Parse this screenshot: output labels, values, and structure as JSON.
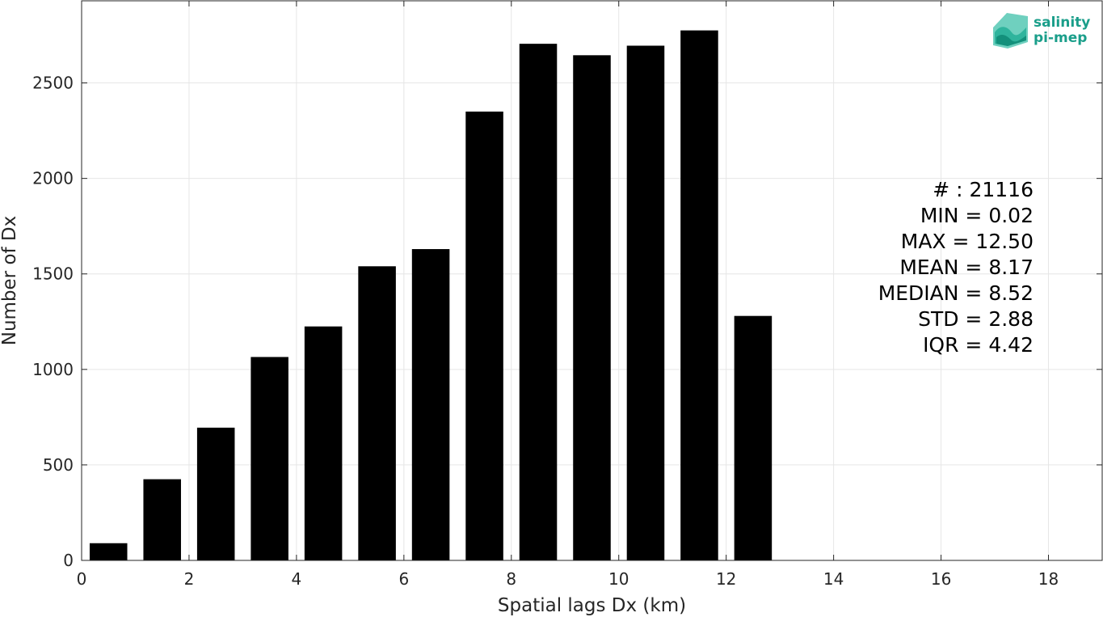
{
  "chart_data": {
    "type": "bar",
    "xlabel": "Spatial lags Dx (km)",
    "ylabel": "Number of Dx",
    "xlim": [
      0,
      19
    ],
    "ylim": [
      0,
      2930
    ],
    "x_ticks": [
      0,
      2,
      4,
      6,
      8,
      10,
      12,
      14,
      16,
      18
    ],
    "y_ticks": [
      0,
      500,
      1000,
      1500,
      2000,
      2500
    ],
    "grid": true,
    "bar_color": "#000000",
    "bar_width": 0.7,
    "bars": [
      {
        "x": 0.5,
        "value": 90
      },
      {
        "x": 1.5,
        "value": 425
      },
      {
        "x": 2.5,
        "value": 695
      },
      {
        "x": 3.5,
        "value": 1065
      },
      {
        "x": 4.5,
        "value": 1225
      },
      {
        "x": 5.5,
        "value": 1540
      },
      {
        "x": 6.5,
        "value": 1630
      },
      {
        "x": 7.5,
        "value": 2350
      },
      {
        "x": 8.5,
        "value": 2705
      },
      {
        "x": 9.5,
        "value": 2645
      },
      {
        "x": 10.5,
        "value": 2695
      },
      {
        "x": 11.5,
        "value": 2775
      },
      {
        "x": 12.5,
        "value": 1280
      }
    ],
    "annotations": [
      "# : 21116",
      "MIN = 0.02",
      "MAX =  12.50",
      "MEAN = 8.17",
      "MEDIAN = 8.52",
      "STD = 2.88",
      "IQR = 4.42"
    ]
  },
  "logo": {
    "line1": "salinity",
    "line2": "pi-mep",
    "color": "#1a9e8a"
  }
}
